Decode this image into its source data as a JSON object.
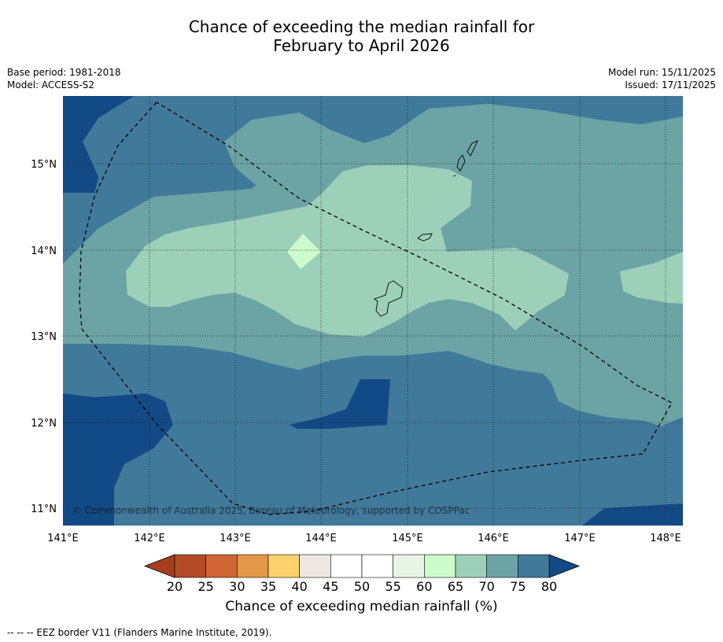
{
  "title": {
    "line1": "Chance of exceeding the median rainfall for",
    "line2": "February to April 2026"
  },
  "meta_left": {
    "base_period": "Base period: 1981-2018",
    "model": "Model: ACCESS-S2"
  },
  "meta_right": {
    "model_run": "Model run: 15/11/2025",
    "issued": "Issued: 17/11/2025"
  },
  "map": {
    "lat_labels": [
      "15°N",
      "14°N",
      "13°N",
      "12°N",
      "11°N"
    ],
    "lon_labels": [
      "141°E",
      "142°E",
      "143°E",
      "144°E",
      "145°E",
      "146°E",
      "147°E",
      "148°E"
    ],
    "copyright": "© Commonwealth of Australia 2025, Bureau of Meteorology, supported by COSPPac"
  },
  "colorbar": {
    "ticks": [
      "20",
      "25",
      "30",
      "35",
      "40",
      "45",
      "50",
      "55",
      "60",
      "65",
      "70",
      "75",
      "80"
    ],
    "colors": [
      "#b34a26",
      "#cf6634",
      "#e39748",
      "#fcd06a",
      "#ede8e3",
      "#ffffff",
      "#ffffff",
      "#e8f5e6",
      "#ccfccc",
      "#9dd0b8",
      "#6ca4a5",
      "#41799a"
    ],
    "low_extend_color": "#a53d20",
    "high_extend_color": "#124a85",
    "title": "Chance of exceeding median rainfall (%)"
  },
  "footer": "--  --  -- EEZ border V11 (Flanders Marine Institute, 2019)."
}
